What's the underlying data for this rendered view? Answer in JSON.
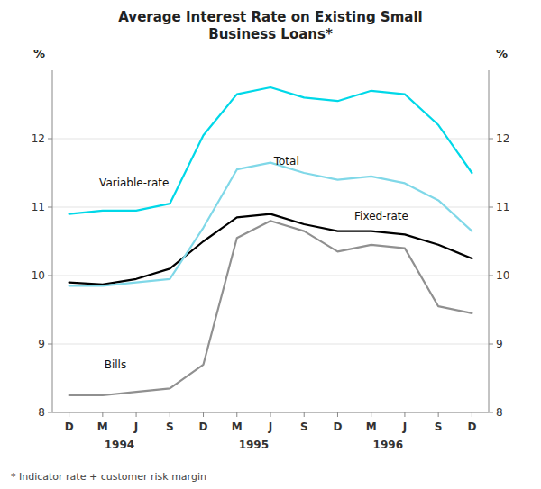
{
  "chart_data": {
    "type": "line",
    "title": "Average Interest Rate on Existing Small\nBusiness Loans*",
    "ylabel": "%",
    "y2label": "%",
    "footnote": "*  Indicator rate + customer risk margin",
    "categories": [
      "D",
      "M",
      "J",
      "S",
      "D",
      "M",
      "J",
      "S",
      "D",
      "M",
      "J",
      "S",
      "D"
    ],
    "ylim": [
      8,
      13
    ],
    "yticks": [
      8,
      9,
      10,
      11,
      12
    ],
    "y2lim": [
      8,
      13
    ],
    "y2ticks": [
      8,
      9,
      10,
      11,
      12
    ],
    "grid": true,
    "series": [
      {
        "color": "#909090",
        "values": [
          8.25,
          8.25,
          8.3,
          8.35,
          8.7,
          10.55,
          10.8,
          10.65,
          10.35,
          10.45,
          10.4,
          9.55,
          9.45
        ]
      },
      {
        "color": "#000000",
        "values": [
          9.9,
          9.87,
          9.95,
          10.1,
          10.5,
          10.85,
          10.9,
          10.75,
          10.65,
          10.65,
          10.6,
          10.45,
          10.25
        ]
      },
      {
        "color": "#80d8e8",
        "values": [
          9.85,
          9.85,
          9.9,
          9.95,
          10.7,
          11.55,
          11.65,
          11.5,
          11.4,
          11.45,
          11.35,
          11.1,
          10.65
        ]
      },
      {
        "color": "#00d8e8",
        "values": [
          10.9,
          10.95,
          10.95,
          11.05,
          12.05,
          12.65,
          12.75,
          12.6,
          12.55,
          12.7,
          12.65,
          12.2,
          11.5
        ]
      }
    ],
    "annotations": [
      {
        "text": "Variable-rate",
        "x": 0.9,
        "y": 11.3
      },
      {
        "text": "Total",
        "x": 6.1,
        "y": 11.62
      },
      {
        "text": "Fixed-rate",
        "x": 8.5,
        "y": 10.82
      },
      {
        "text": "Bills",
        "x": 1.05,
        "y": 8.65
      },
      {
        "text": "1994",
        "x": 1.5
      },
      {
        "text": "1995",
        "x": 5.5
      },
      {
        "text": "1996",
        "x": 9.5
      }
    ]
  }
}
